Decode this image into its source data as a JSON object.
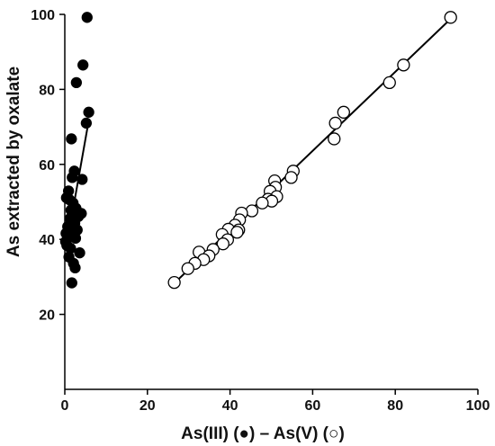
{
  "chart_data": {
    "type": "scatter",
    "xlabel": "As(III) (●) – As(V) (○)",
    "ylabel": "As extracted by oxalate",
    "xlim": [
      0,
      100
    ],
    "ylim": [
      0,
      100
    ],
    "x_ticks": [
      0,
      20,
      40,
      60,
      80,
      100
    ],
    "y_ticks": [
      20,
      40,
      60,
      80,
      100
    ],
    "grid": false,
    "legend": "none",
    "series": [
      {
        "marker": "filled-circle",
        "color": "#000000",
        "points": [
          [
            5.4,
            99.2
          ],
          [
            4.4,
            86.5
          ],
          [
            2.8,
            81.8
          ],
          [
            5.8,
            73.9
          ],
          [
            5.2,
            71.0
          ],
          [
            1.6,
            66.8
          ],
          [
            4.2,
            56.0
          ],
          [
            2.3,
            58.2
          ],
          [
            1.8,
            56.5
          ],
          [
            0.9,
            52.9
          ],
          [
            0.4,
            51.1
          ],
          [
            1.1,
            50.6
          ],
          [
            2.0,
            49.7
          ],
          [
            2.7,
            48.3
          ],
          [
            1.5,
            47.8
          ],
          [
            4.0,
            46.9
          ],
          [
            3.3,
            46.1
          ],
          [
            1.3,
            45.6
          ],
          [
            2.4,
            44.3
          ],
          [
            0.7,
            43.4
          ],
          [
            1.9,
            43.0
          ],
          [
            3.0,
            42.5
          ],
          [
            0.3,
            41.6
          ],
          [
            1.2,
            40.6
          ],
          [
            2.6,
            40.3
          ],
          [
            0.2,
            39.4
          ],
          [
            0.5,
            38.4
          ],
          [
            1.4,
            37.6
          ],
          [
            3.6,
            36.4
          ],
          [
            1.0,
            35.3
          ],
          [
            2.1,
            33.6
          ],
          [
            2.5,
            32.4
          ],
          [
            1.7,
            28.4
          ]
        ],
        "fit": [
          [
            0.3,
            37.5
          ],
          [
            5.6,
            70.5
          ]
        ]
      },
      {
        "marker": "open-circle",
        "color": "#000000",
        "points": [
          [
            93.4,
            99.2
          ],
          [
            82.0,
            86.5
          ],
          [
            78.6,
            81.8
          ],
          [
            67.5,
            73.9
          ],
          [
            65.5,
            71.0
          ],
          [
            65.2,
            66.8
          ],
          [
            55.3,
            58.2
          ],
          [
            54.8,
            56.5
          ],
          [
            50.8,
            55.6
          ],
          [
            51.0,
            53.9
          ],
          [
            49.7,
            52.8
          ],
          [
            51.3,
            51.4
          ],
          [
            49.2,
            50.7
          ],
          [
            50.1,
            50.2
          ],
          [
            47.8,
            49.7
          ],
          [
            45.3,
            47.6
          ],
          [
            42.8,
            47.0
          ],
          [
            42.3,
            45.2
          ],
          [
            41.2,
            43.8
          ],
          [
            39.6,
            42.7
          ],
          [
            42.1,
            42.5
          ],
          [
            41.7,
            41.9
          ],
          [
            38.1,
            41.3
          ],
          [
            39.4,
            39.9
          ],
          [
            38.3,
            38.8
          ],
          [
            35.9,
            37.3
          ],
          [
            32.5,
            36.6
          ],
          [
            34.9,
            35.6
          ],
          [
            33.6,
            34.6
          ],
          [
            31.5,
            33.6
          ],
          [
            29.8,
            32.2
          ],
          [
            26.5,
            28.5
          ]
        ],
        "fit": [
          [
            26.5,
            28.3
          ],
          [
            93.4,
            98.8
          ]
        ]
      }
    ]
  }
}
